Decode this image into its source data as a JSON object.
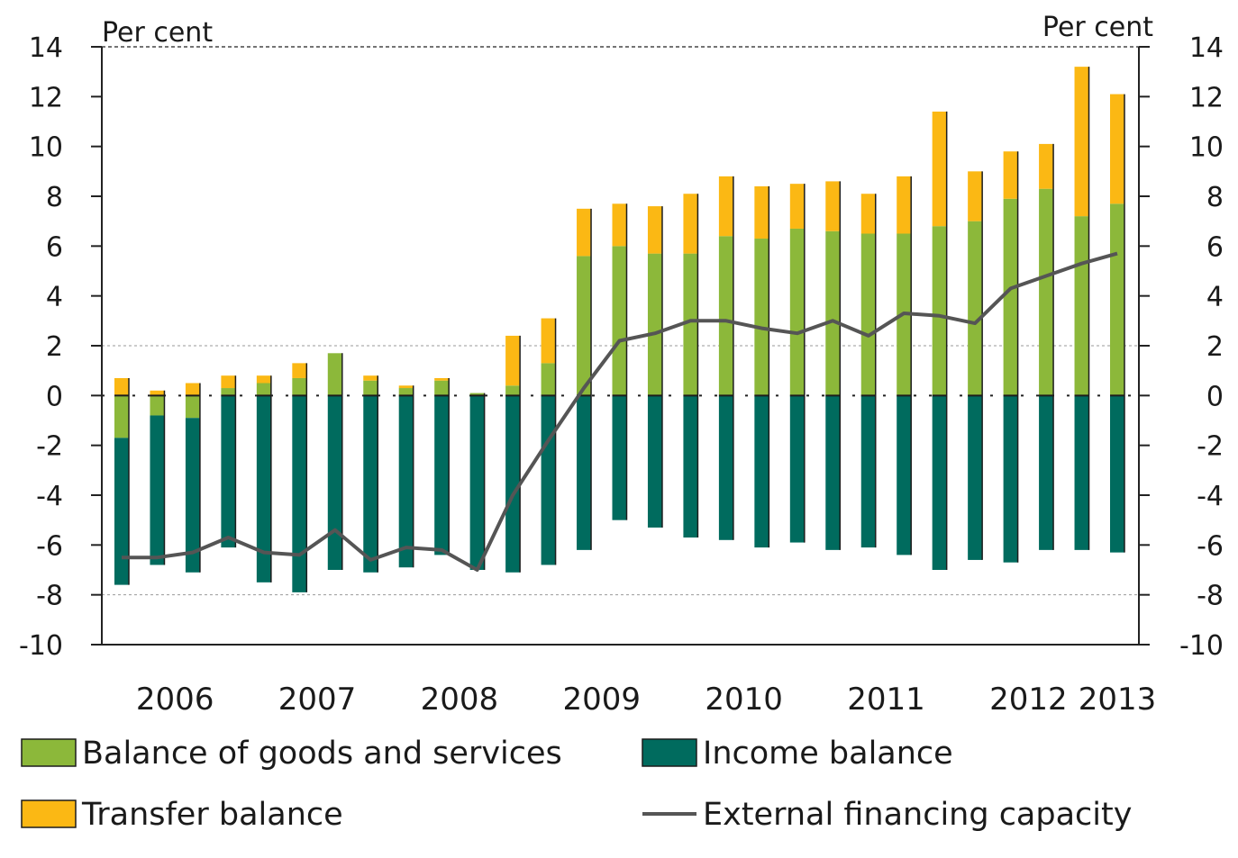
{
  "chart_data": {
    "type": "bar",
    "stacked": true,
    "left_unit": "Per cent",
    "right_unit": "Per cent",
    "ylim": [
      -10,
      14
    ],
    "y_ticks": [
      14,
      12,
      10,
      8,
      6,
      4,
      2,
      0,
      -2,
      -4,
      -6,
      -8,
      -10
    ],
    "year_labels": [
      "2006",
      "2007",
      "2008",
      "2009",
      "2010",
      "2011",
      "2012",
      "2013"
    ],
    "periods_per_year": 4,
    "series": [
      {
        "name": "Balance of goods and services",
        "kind": "bar",
        "color": "#8cb83a",
        "values": [
          -1.7,
          -0.8,
          -0.9,
          0.3,
          0.5,
          0.7,
          1.7,
          0.6,
          0.3,
          0.6,
          0.1,
          0.4,
          1.3,
          5.6,
          6.0,
          5.7,
          5.7,
          6.4,
          6.3,
          6.7,
          6.6,
          6.5,
          6.5,
          6.8,
          7.0,
          7.9,
          8.3,
          7.2,
          7.7
        ]
      },
      {
        "name": "Income balance",
        "kind": "bar",
        "color": "#006b5e",
        "values": [
          -5.9,
          -6.0,
          -6.2,
          -6.1,
          -7.5,
          -7.9,
          -7.0,
          -7.1,
          -6.9,
          -6.4,
          -7.0,
          -7.1,
          -6.8,
          -6.2,
          -5.0,
          -5.3,
          -5.7,
          -5.8,
          -6.1,
          -5.9,
          -6.2,
          -6.1,
          -6.4,
          -7.0,
          -6.6,
          -6.7,
          -6.2,
          -6.2,
          -6.3
        ]
      },
      {
        "name": "Transfer balance",
        "kind": "bar",
        "color": "#fbb814",
        "values": [
          0.7,
          0.2,
          0.5,
          0.5,
          0.3,
          0.6,
          0.0,
          0.2,
          0.1,
          0.1,
          0.0,
          2.0,
          1.8,
          1.9,
          1.7,
          1.9,
          2.4,
          2.4,
          2.1,
          1.8,
          2.0,
          1.6,
          2.3,
          4.6,
          2.0,
          1.9,
          1.8,
          6.0,
          4.4
        ]
      },
      {
        "name": "External financing capacity",
        "kind": "line",
        "color": "#555555",
        "values": [
          -6.5,
          -6.5,
          -6.3,
          -5.7,
          -6.3,
          -6.4,
          -5.4,
          -6.6,
          -6.1,
          -6.2,
          -7.0,
          -4.0,
          -1.8,
          0.3,
          2.2,
          2.5,
          3.0,
          3.0,
          2.7,
          2.5,
          3.0,
          2.4,
          3.3,
          3.2,
          2.9,
          4.3,
          4.8,
          5.3,
          5.7
        ]
      }
    ],
    "grid": "dashed at 2 and -8",
    "legend_position": "bottom"
  }
}
